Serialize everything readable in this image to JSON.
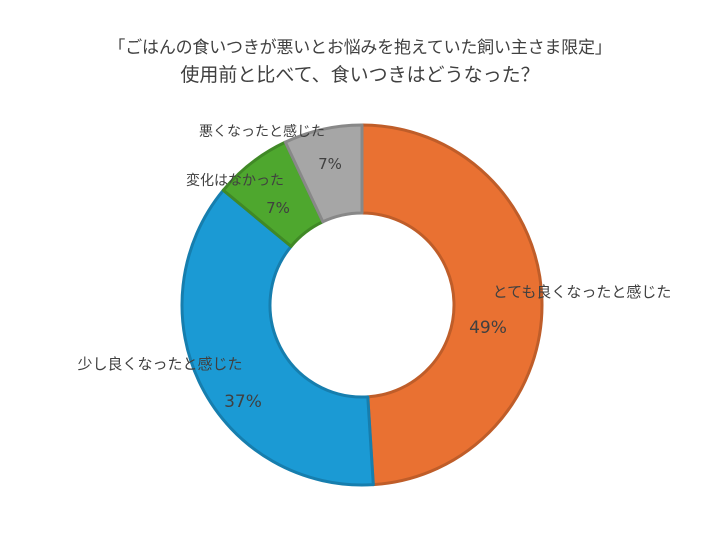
{
  "title": {
    "line1": "「ごはんの食いつきが悪いとお悩みを抱えていた飼い主さま限定」",
    "line2": "使用前と比べて、食いつきはどうなった？"
  },
  "chart_data": {
    "type": "pie",
    "variant": "donut",
    "title": "「ごはんの食いつきが悪いとお悩みを抱えていた飼い主さま限定」使用前と比べて、食いつきはどうなった？",
    "categories": [
      "とても良くなったと感じた",
      "少し良くなったと感じた",
      "変化はなかった",
      "悪くなったと感じた"
    ],
    "values": [
      49,
      37,
      7,
      7
    ],
    "value_labels": [
      "49%",
      "37%",
      "7%",
      "7%"
    ],
    "unit": "%",
    "colors": [
      "#E97132",
      "#1B9AD4",
      "#4EA72E",
      "#A6A6A6"
    ],
    "start": "top, clockwise",
    "legend": "none (labels on slices)"
  }
}
